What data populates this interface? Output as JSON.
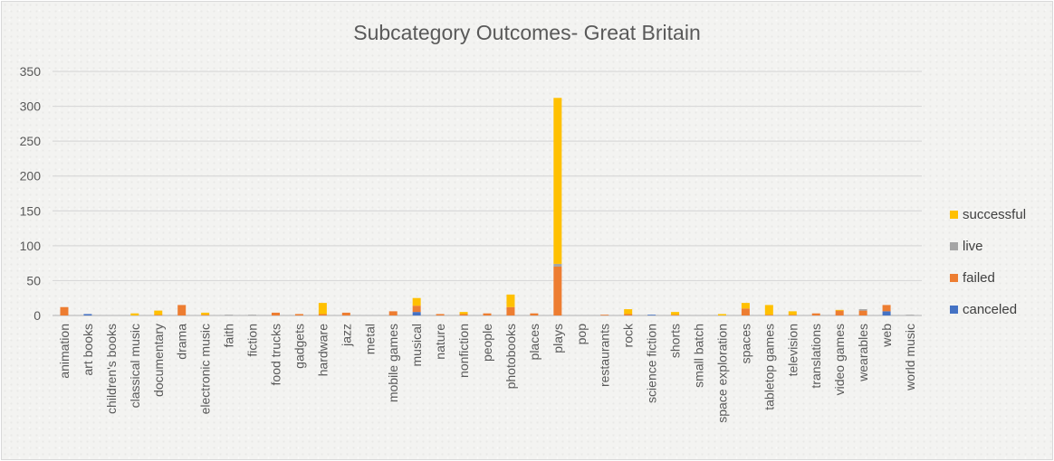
{
  "chart_data": {
    "type": "bar",
    "stacked": true,
    "title": "Subcategory Outcomes- Great Britain",
    "xlabel": "",
    "ylabel": "",
    "ylim": [
      0,
      350
    ],
    "yticks": [
      0,
      50,
      100,
      150,
      200,
      250,
      300,
      350
    ],
    "grid": true,
    "legend_position": "right",
    "categories": [
      "animation",
      "art books",
      "children's books",
      "classical music",
      "documentary",
      "drama",
      "electronic music",
      "faith",
      "fiction",
      "food trucks",
      "gadgets",
      "hardware",
      "jazz",
      "metal",
      "mobile games",
      "musical",
      "nature",
      "nonfiction",
      "people",
      "photobooks",
      "places",
      "plays",
      "pop",
      "restaurants",
      "rock",
      "science fiction",
      "shorts",
      "small batch",
      "space exploration",
      "spaces",
      "tabletop games",
      "television",
      "translations",
      "video games",
      "wearables",
      "web",
      "world music"
    ],
    "series": [
      {
        "name": "canceled",
        "color": "#4472c4",
        "values": [
          0,
          2,
          0,
          0,
          0,
          0,
          0,
          0,
          0,
          0,
          0,
          0,
          0,
          0,
          0,
          5,
          0,
          0,
          0,
          0,
          0,
          0,
          0,
          0,
          0,
          1,
          0,
          0,
          0,
          0,
          0,
          0,
          0,
          0,
          0,
          6,
          0
        ]
      },
      {
        "name": "failed",
        "color": "#ed7d31",
        "values": [
          12,
          0,
          0,
          0,
          1,
          15,
          1,
          0,
          0,
          4,
          2,
          2,
          4,
          0,
          6,
          9,
          2,
          2,
          3,
          12,
          3,
          70,
          0,
          1,
          2,
          0,
          1,
          0,
          0,
          10,
          1,
          1,
          3,
          7,
          7,
          9,
          0
        ]
      },
      {
        "name": "live",
        "color": "#a5a5a5",
        "values": [
          0,
          0,
          0,
          0,
          0,
          0,
          0,
          1,
          1,
          0,
          0,
          0,
          0,
          0,
          0,
          0,
          0,
          0,
          0,
          0,
          0,
          4,
          0,
          0,
          0,
          0,
          0,
          0,
          0,
          0,
          0,
          0,
          0,
          0,
          2,
          0,
          1
        ]
      },
      {
        "name": "successful",
        "color": "#ffc000",
        "values": [
          0,
          0,
          0,
          3,
          6,
          0,
          3,
          0,
          0,
          0,
          0,
          16,
          0,
          0,
          0,
          11,
          0,
          3,
          0,
          18,
          0,
          238,
          0,
          0,
          7,
          0,
          4,
          0,
          2,
          8,
          14,
          5,
          0,
          1,
          0,
          0,
          0
        ]
      }
    ]
  }
}
